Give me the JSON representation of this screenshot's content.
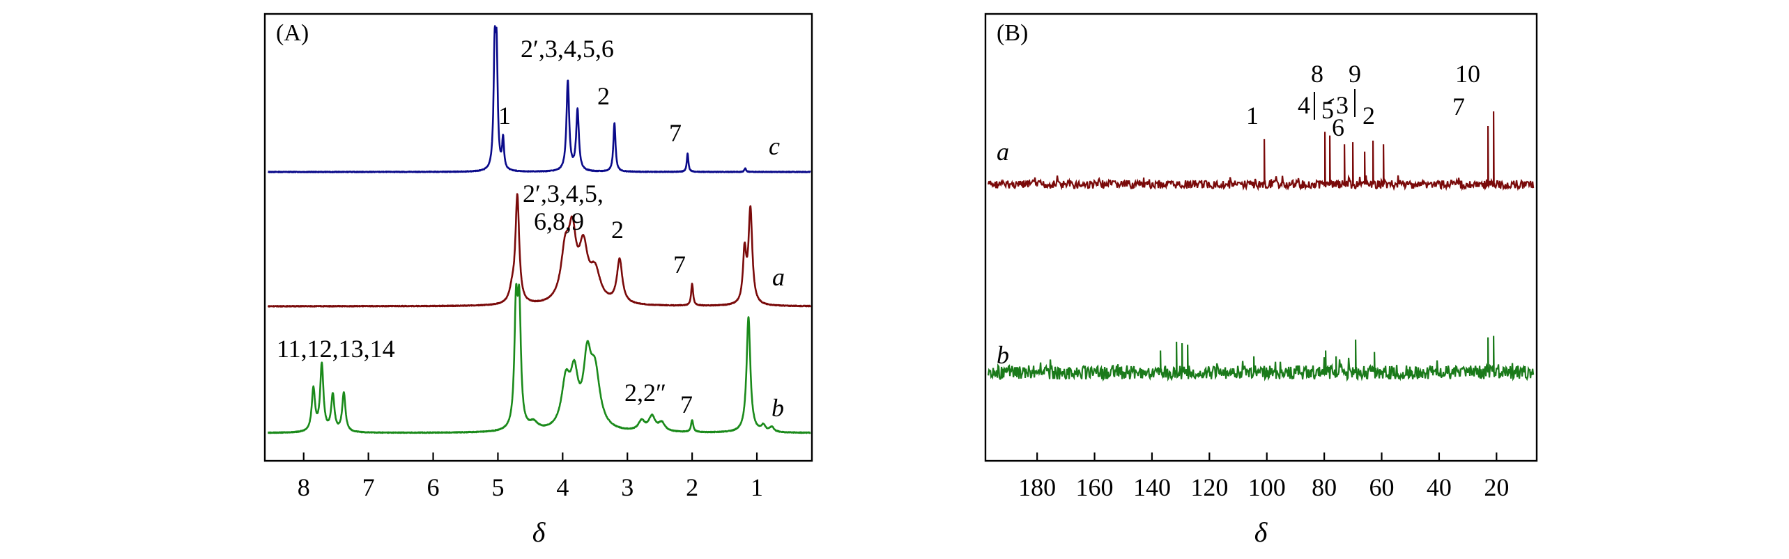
{
  "chart_data": [
    {
      "panel": "(A)",
      "type": "line",
      "title": "(A)",
      "xlabel": "δ",
      "ylabel": "",
      "xlim": [
        8.6,
        0.15
      ],
      "x_ticks": [
        8,
        7,
        6,
        5,
        4,
        3,
        2,
        1
      ],
      "tick_labels": [
        "8",
        "7",
        "6",
        "5",
        "4",
        "3",
        "2",
        "1"
      ],
      "grid": false,
      "series": [
        {
          "name": "c",
          "color": "#0a0a8a",
          "peaks": [
            {
              "x": 5.05,
              "height": 0.9,
              "width": 0.02
            },
            {
              "x": 5.02,
              "height": 0.88,
              "width": 0.02
            },
            {
              "x": 4.92,
              "height": 0.25,
              "width": 0.018
            },
            {
              "x": 3.92,
              "height": 0.74,
              "width": 0.025
            },
            {
              "x": 3.77,
              "height": 0.5,
              "width": 0.025
            },
            {
              "x": 3.2,
              "height": 0.4,
              "width": 0.02
            },
            {
              "x": 2.07,
              "height": 0.15,
              "width": 0.015
            },
            {
              "x": 1.18,
              "height": 0.03,
              "width": 0.015
            }
          ],
          "annotations": [
            {
              "text": "2′,3,4,5,6",
              "x": 3.85
            },
            {
              "text": "1",
              "x": 4.93
            },
            {
              "text": "2",
              "x": 3.18
            },
            {
              "text": "7",
              "x": 2.12
            },
            {
              "text": "c",
              "x": 0.5
            }
          ]
        },
        {
          "name": "a",
          "color": "#7a0a0a",
          "peaks": [
            {
              "x": 4.78,
              "height": 0.1,
              "width": 0.05
            },
            {
              "x": 4.7,
              "height": 0.88,
              "width": 0.035
            },
            {
              "x": 3.96,
              "height": 0.4,
              "width": 0.08
            },
            {
              "x": 3.85,
              "height": 0.5,
              "width": 0.07
            },
            {
              "x": 3.68,
              "height": 0.42,
              "width": 0.08
            },
            {
              "x": 3.5,
              "height": 0.25,
              "width": 0.1
            },
            {
              "x": 3.12,
              "height": 0.36,
              "width": 0.05
            },
            {
              "x": 2.0,
              "height": 0.18,
              "width": 0.018
            },
            {
              "x": 1.19,
              "height": 0.42,
              "width": 0.03
            },
            {
              "x": 1.1,
              "height": 0.78,
              "width": 0.035
            }
          ],
          "annotations": [
            {
              "text": "2′,3,4,5,",
              "x": 3.85
            },
            {
              "text": "6,8,9",
              "x": 3.85
            },
            {
              "text": "2",
              "x": 2.95
            },
            {
              "text": "7",
              "x": 2.0
            },
            {
              "text": "a",
              "x": 0.5
            }
          ]
        },
        {
          "name": "b",
          "color": "#1a8a1a",
          "peaks": [
            {
              "x": 7.85,
              "height": 0.35,
              "width": 0.03
            },
            {
              "x": 7.72,
              "height": 0.55,
              "width": 0.03
            },
            {
              "x": 7.55,
              "height": 0.3,
              "width": 0.03
            },
            {
              "x": 7.38,
              "height": 0.32,
              "width": 0.03
            },
            {
              "x": 4.72,
              "height": 0.95,
              "width": 0.03
            },
            {
              "x": 4.67,
              "height": 0.93,
              "width": 0.03
            },
            {
              "x": 4.45,
              "height": 0.06,
              "width": 0.08
            },
            {
              "x": 3.95,
              "height": 0.38,
              "width": 0.08
            },
            {
              "x": 3.82,
              "height": 0.4,
              "width": 0.07
            },
            {
              "x": 3.62,
              "height": 0.52,
              "width": 0.07
            },
            {
              "x": 3.5,
              "height": 0.45,
              "width": 0.09
            },
            {
              "x": 2.78,
              "height": 0.08,
              "width": 0.06
            },
            {
              "x": 2.62,
              "height": 0.12,
              "width": 0.06
            },
            {
              "x": 2.47,
              "height": 0.07,
              "width": 0.06
            },
            {
              "x": 2.0,
              "height": 0.1,
              "width": 0.02
            },
            {
              "x": 1.13,
              "height": 0.95,
              "width": 0.035
            },
            {
              "x": 0.9,
              "height": 0.05,
              "width": 0.04
            },
            {
              "x": 0.77,
              "height": 0.04,
              "width": 0.04
            }
          ],
          "annotations": [
            {
              "text": "11,12,13,14",
              "x": 7.65
            },
            {
              "text": "2,2″",
              "x": 2.72
            },
            {
              "text": "7",
              "x": 1.92
            },
            {
              "text": "b",
              "x": 0.5
            }
          ]
        }
      ]
    },
    {
      "panel": "(B)",
      "type": "line",
      "title": "(B)",
      "xlabel": "δ",
      "ylabel": "",
      "xlim": [
        198,
        6
      ],
      "x_ticks": [
        180,
        160,
        140,
        120,
        100,
        80,
        60,
        40,
        20
      ],
      "tick_labels": [
        "180",
        "160",
        "140",
        "120",
        "100",
        "80",
        "60",
        "40",
        "20"
      ],
      "grid": false,
      "series": [
        {
          "name": "a",
          "color": "#7a0a0a",
          "peaks": [
            {
              "x": 101.0,
              "height": 0.62
            },
            {
              "x": 79.8,
              "height": 0.72
            },
            {
              "x": 78.0,
              "height": 0.67
            },
            {
              "x": 73.0,
              "height": 0.55
            },
            {
              "x": 70.2,
              "height": 0.58
            },
            {
              "x": 66.0,
              "height": 0.45
            },
            {
              "x": 63.0,
              "height": 0.6
            },
            {
              "x": 59.5,
              "height": 0.55
            },
            {
              "x": 23.0,
              "height": 0.8
            },
            {
              "x": 21.0,
              "height": 1.0
            }
          ],
          "annotations": [
            {
              "text": "1",
              "x": 101.0
            },
            {
              "text": "8",
              "x": 78.5
            },
            {
              "text": "9",
              "x": 63.0
            },
            {
              "text": "4",
              "x": 81.0
            },
            {
              "text": "5",
              "x": 74.0
            },
            {
              "text": "3",
              "x": 68.0
            },
            {
              "text": "6",
              "x": 67.0
            },
            {
              "text": "2",
              "x": 57.5
            },
            {
              "text": "10",
              "x": 21.0
            },
            {
              "text": "7",
              "x": 24.0
            },
            {
              "text": "a",
              "x": 196.0
            }
          ]
        },
        {
          "name": "b",
          "color": "#1a7a1a",
          "peaks": [
            {
              "x": 137.0,
              "height": 0.3
            },
            {
              "x": 131.5,
              "height": 0.42
            },
            {
              "x": 129.5,
              "height": 0.4
            },
            {
              "x": 127.5,
              "height": 0.38
            },
            {
              "x": 104.5,
              "height": 0.22
            },
            {
              "x": 79.5,
              "height": 0.3
            },
            {
              "x": 76.0,
              "height": 0.22
            },
            {
              "x": 69.0,
              "height": 0.45
            },
            {
              "x": 62.5,
              "height": 0.28
            },
            {
              "x": 23.0,
              "height": 0.48
            },
            {
              "x": 21.0,
              "height": 0.5
            }
          ],
          "annotations": [
            {
              "text": "b",
              "x": 196.0
            }
          ]
        }
      ]
    }
  ]
}
